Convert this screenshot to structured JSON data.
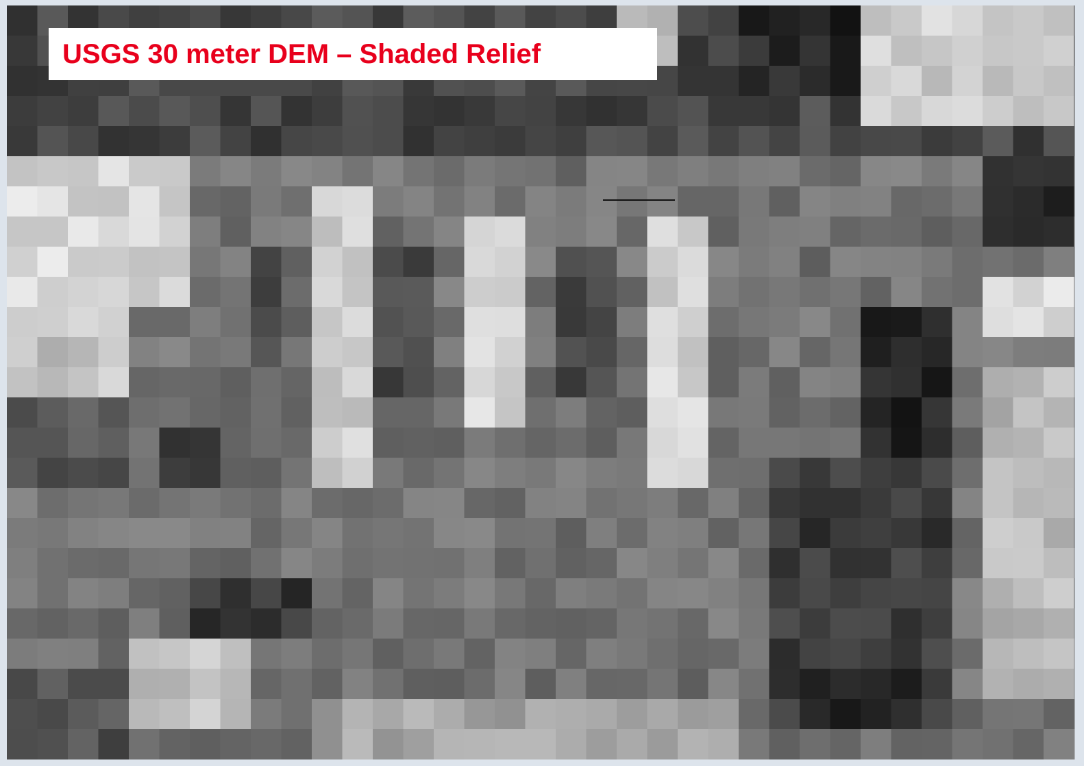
{
  "header": {
    "title": "USGS 30 meter DEM – Shaded Relief"
  }
}
